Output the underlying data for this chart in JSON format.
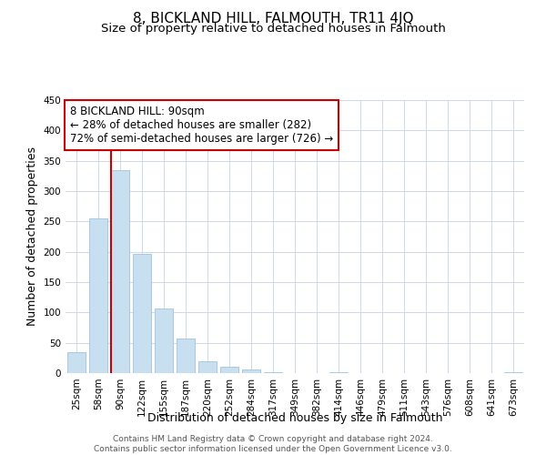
{
  "title": "8, BICKLAND HILL, FALMOUTH, TR11 4JQ",
  "subtitle": "Size of property relative to detached houses in Falmouth",
  "xlabel": "Distribution of detached houses by size in Falmouth",
  "ylabel": "Number of detached properties",
  "bar_labels": [
    "25sqm",
    "58sqm",
    "90sqm",
    "122sqm",
    "155sqm",
    "187sqm",
    "220sqm",
    "252sqm",
    "284sqm",
    "317sqm",
    "349sqm",
    "382sqm",
    "414sqm",
    "446sqm",
    "479sqm",
    "511sqm",
    "543sqm",
    "576sqm",
    "608sqm",
    "641sqm",
    "673sqm"
  ],
  "bar_values": [
    35,
    255,
    335,
    196,
    106,
    57,
    20,
    11,
    6,
    2,
    0,
    0,
    1,
    0,
    0,
    0,
    0,
    0,
    0,
    0,
    2
  ],
  "bar_color": "#c8dff0",
  "bar_edge_color": "#a0c4e0",
  "highlight_line_color": "#cc0000",
  "vline_index": 2,
  "annotation_box_text": "8 BICKLAND HILL: 90sqm\n← 28% of detached houses are smaller (282)\n72% of semi-detached houses are larger (726) →",
  "ylim": [
    0,
    450
  ],
  "yticks": [
    0,
    50,
    100,
    150,
    200,
    250,
    300,
    350,
    400,
    450
  ],
  "footer_line1": "Contains HM Land Registry data © Crown copyright and database right 2024.",
  "footer_line2": "Contains public sector information licensed under the Open Government Licence v3.0.",
  "background_color": "#ffffff",
  "grid_color": "#d0d8e8",
  "title_fontsize": 11,
  "subtitle_fontsize": 9.5,
  "axis_label_fontsize": 9,
  "tick_fontsize": 7.5,
  "annotation_fontsize": 8.5,
  "footer_fontsize": 6.5
}
